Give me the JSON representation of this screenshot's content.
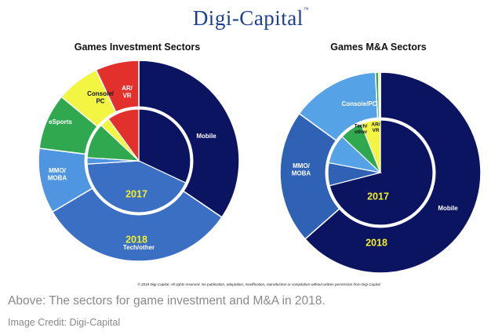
{
  "brand": {
    "name": "Digi-Capital",
    "mark": "™"
  },
  "caption": "Above: The sectors for game investment and M&A in 2018.",
  "credit": "Image Credit: Digi-Capital",
  "copyright": "© 2019 Digi-Capital. All rights reserved. No publication, adaptation, modification, reproduction or compilation without written permission from Digi-Capital",
  "colors": {
    "mobile": "#0b1461",
    "tech_other": "#3a6fc4",
    "mmo_moba": "#2f62b5",
    "mmo_inv": "#4f95e0",
    "esports": "#2fa84f",
    "console_inv": "#f2f542",
    "ar_vr": "#e2302c",
    "console_ma": "#55a3e6",
    "year_label": "#f3ef2a"
  },
  "chart_data": [
    {
      "type": "pie",
      "title": "Games Investment Sectors",
      "subtitle": "nested donut: outer ring 2018, inner pie 2017",
      "center_year": "2017",
      "outer_year": "2018",
      "outer": {
        "year": "2018",
        "slices": [
          {
            "label": "Mobile",
            "value": 34.5,
            "color": "#0b1461"
          },
          {
            "label": "Tech/other",
            "value": 32,
            "color": "#3a6fc4"
          },
          {
            "label": "MMO/\nMOBA",
            "value": 10.5,
            "color": "#4f95e0"
          },
          {
            "label": "eSports",
            "value": 9,
            "color": "#2fa84f"
          },
          {
            "label": "Console/\nPC",
            "value": 7,
            "color": "#f2f542"
          },
          {
            "label": "AR/\nVR",
            "value": 7,
            "color": "#e2302c"
          }
        ]
      },
      "inner": {
        "year": "2017",
        "slices": [
          {
            "label": "Mobile",
            "value": 32,
            "color": "#0b1461"
          },
          {
            "label": "Tech/other",
            "value": 42,
            "color": "#3a6fc4"
          },
          {
            "label": "MMO/MOBA",
            "value": 2,
            "color": "#4f95e0"
          },
          {
            "label": "eSports",
            "value": 11,
            "color": "#2fa84f"
          },
          {
            "label": "Console/PC",
            "value": 3,
            "color": "#f2f542"
          },
          {
            "label": "AR/VR",
            "value": 10,
            "color": "#e2302c"
          }
        ]
      }
    },
    {
      "type": "pie",
      "title": "Games M&A Sectors",
      "subtitle": "nested donut: outer ring 2018, inner pie 2017",
      "center_year": "2017",
      "outer_year": "2018",
      "outer": {
        "year": "2018",
        "slices": [
          {
            "label": "Mobile",
            "value": 63.5,
            "color": "#0b1461"
          },
          {
            "label": "MMO/\nMOBA",
            "value": 21.5,
            "color": "#2f62b5"
          },
          {
            "label": "Console/PC",
            "value": 14.2,
            "color": "#55a3e6"
          },
          {
            "label": "eSports",
            "value": 0.5,
            "color": "#2fa84f"
          },
          {
            "label": "AR/VR",
            "value": 0.3,
            "color": "#f2f542"
          }
        ]
      },
      "inner": {
        "year": "2017",
        "slices": [
          {
            "label": "Mobile",
            "value": 71,
            "color": "#0b1461"
          },
          {
            "label": "MMO/MOBA",
            "value": 7,
            "color": "#2f62b5"
          },
          {
            "label": "Console/PC",
            "value": 9,
            "color": "#55a3e6"
          },
          {
            "label": "Tech/\nother",
            "value": 7,
            "color": "#2fa84f"
          },
          {
            "label": "AR/\nVR",
            "value": 6,
            "color": "#f2f542"
          }
        ]
      }
    }
  ]
}
